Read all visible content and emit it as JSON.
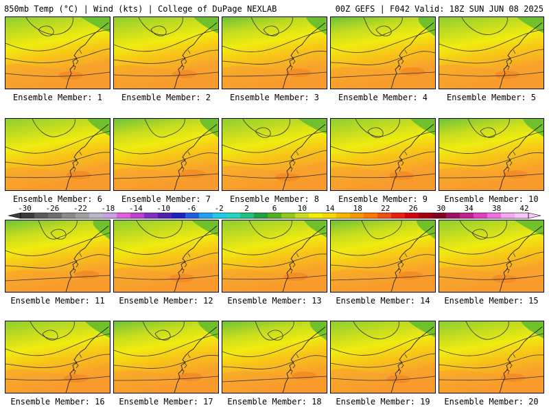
{
  "header": {
    "left": "850mb Temp (°C) | Wind (kts) | College of DuPage NEXLAB",
    "right": "00Z GEFS | F042 Valid: 18Z SUN JUN 08 2025"
  },
  "panels": [
    {
      "label": "Ensemble Member: 1"
    },
    {
      "label": "Ensemble Member: 2"
    },
    {
      "label": "Ensemble Member: 3"
    },
    {
      "label": "Ensemble Member: 4"
    },
    {
      "label": "Ensemble Member: 5"
    },
    {
      "label": "Ensemble Member: 6"
    },
    {
      "label": "Ensemble Member: 7"
    },
    {
      "label": "Ensemble Member: 8"
    },
    {
      "label": "Ensemble Member: 9"
    },
    {
      "label": "Ensemble Member: 10"
    },
    {
      "label": "Ensemble Member: 11"
    },
    {
      "label": "Ensemble Member: 12"
    },
    {
      "label": "Ensemble Member: 13"
    },
    {
      "label": "Ensemble Member: 14"
    },
    {
      "label": "Ensemble Member: 15"
    },
    {
      "label": "Ensemble Member: 16"
    },
    {
      "label": "Ensemble Member: 17"
    },
    {
      "label": "Ensemble Member: 18"
    },
    {
      "label": "Ensemble Member: 19"
    },
    {
      "label": "Ensemble Member: 20"
    }
  ],
  "colorbar": {
    "ticks": [
      "-30",
      "-26",
      "-22",
      "-18",
      "-14",
      "-10",
      "-6",
      "-2",
      "2",
      "6",
      "10",
      "14",
      "18",
      "22",
      "26",
      "30",
      "34",
      "38",
      "42"
    ],
    "colors": [
      "#3a3a3a",
      "#5a5a5a",
      "#6e6e6e",
      "#8a8a8a",
      "#a0a0a0",
      "#b8b8c8",
      "#c8a0e0",
      "#e060e0",
      "#c040d0",
      "#8030c0",
      "#5020b0",
      "#2020c0",
      "#2060e0",
      "#20a0f0",
      "#20c8e8",
      "#20d8c0",
      "#20c080",
      "#20a040",
      "#50b020",
      "#90c820",
      "#c8dc20",
      "#f0f000",
      "#f8d800",
      "#f8b800",
      "#f89800",
      "#f87800",
      "#f05010",
      "#e82010",
      "#d00010",
      "#a00010",
      "#800020",
      "#a01060",
      "#c02090",
      "#e040c0",
      "#f070e0",
      "#f8a8f0",
      "#f8c8f8"
    ]
  }
}
